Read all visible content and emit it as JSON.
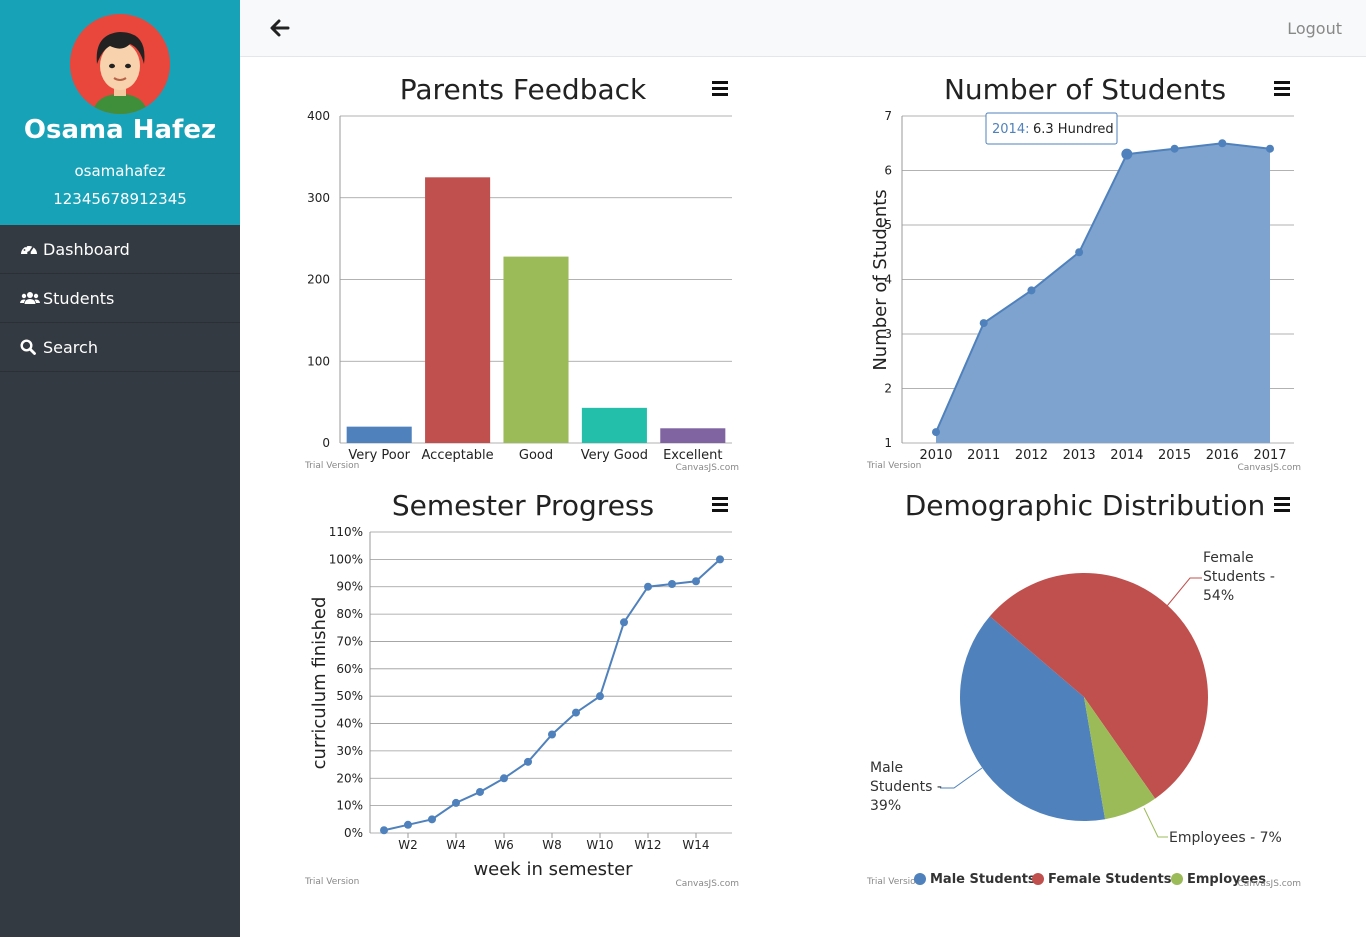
{
  "profile": {
    "name": "Osama Hafez",
    "username": "osamahafez",
    "id_number": "12345678912345"
  },
  "nav": [
    {
      "label": "Dashboard",
      "icon": "dashboard-icon"
    },
    {
      "label": "Students",
      "icon": "users-icon"
    },
    {
      "label": "Search",
      "icon": "search-icon"
    }
  ],
  "topbar": {
    "logout_label": "Logout",
    "back_icon": "arrow-left-icon"
  },
  "watermark": {
    "trial": "Trial Version",
    "brand": "CanvasJS.com"
  },
  "colors": {
    "sidebar": "#343a42",
    "profile_bg": "#17a2b8",
    "blue": "#4f81bc",
    "red": "#c0504e",
    "green": "#9bbb58",
    "teal": "#23bfaa",
    "purple": "#8064a1"
  },
  "chart_data": [
    {
      "type": "bar",
      "title": "Parents Feedback",
      "categories": [
        "Very Poor",
        "Acceptable",
        "Good",
        "Very Good",
        "Excellent"
      ],
      "values": [
        20,
        325,
        228,
        43,
        18
      ],
      "colors": [
        "#4f81bc",
        "#c0504e",
        "#9bbb58",
        "#23bfaa",
        "#8064a1"
      ],
      "ylim": [
        0,
        400
      ],
      "yticks": [
        "0",
        "100",
        "200",
        "300",
        "400"
      ],
      "xlabel": "",
      "ylabel": "",
      "grid": true
    },
    {
      "type": "area",
      "title": "Number of Students",
      "ylabel": "Number of Students",
      "xlabel": "",
      "x": [
        "2010",
        "2011",
        "2012",
        "2013",
        "2014",
        "2015",
        "2016",
        "2017"
      ],
      "values": [
        1.2,
        3.2,
        3.8,
        4.5,
        6.3,
        6.4,
        6.5,
        6.4
      ],
      "ylim": [
        1,
        7
      ],
      "yticks": [
        "1",
        "2",
        "3",
        "4",
        "5",
        "6",
        "7"
      ],
      "tooltip": {
        "label": "2014:",
        "value": "6.3 Hundred"
      },
      "grid": true
    },
    {
      "type": "line",
      "title": "Semester Progress",
      "ylabel": "curriculum finished",
      "xlabel": "week in semester",
      "x": [
        1,
        2,
        3,
        4,
        5,
        6,
        7,
        8,
        9,
        10,
        11,
        12,
        13,
        14,
        15
      ],
      "values": [
        1,
        3,
        5,
        11,
        15,
        20,
        26,
        36,
        44,
        50,
        77,
        90,
        91,
        92,
        100
      ],
      "xticks": [
        "W2",
        "W4",
        "W6",
        "W8",
        "W10",
        "W12",
        "W14"
      ],
      "yticks": [
        "0%",
        "10%",
        "20%",
        "30%",
        "40%",
        "50%",
        "60%",
        "70%",
        "80%",
        "90%",
        "100%",
        "110%"
      ],
      "ylim": [
        0,
        110
      ],
      "grid": true
    },
    {
      "type": "pie",
      "title": "Demographic Distribution",
      "labels": [
        "Male Students",
        "Female Students",
        "Employees"
      ],
      "values": [
        39,
        54,
        7
      ],
      "colors": [
        "#4f81bc",
        "#c0504e",
        "#9bbb58"
      ],
      "slice_labels": [
        [
          "Male",
          "Students -",
          "39%"
        ],
        [
          "Female",
          "Students -",
          "54%"
        ],
        [
          "Employees - 7%"
        ]
      ],
      "legend": "bottom"
    }
  ]
}
